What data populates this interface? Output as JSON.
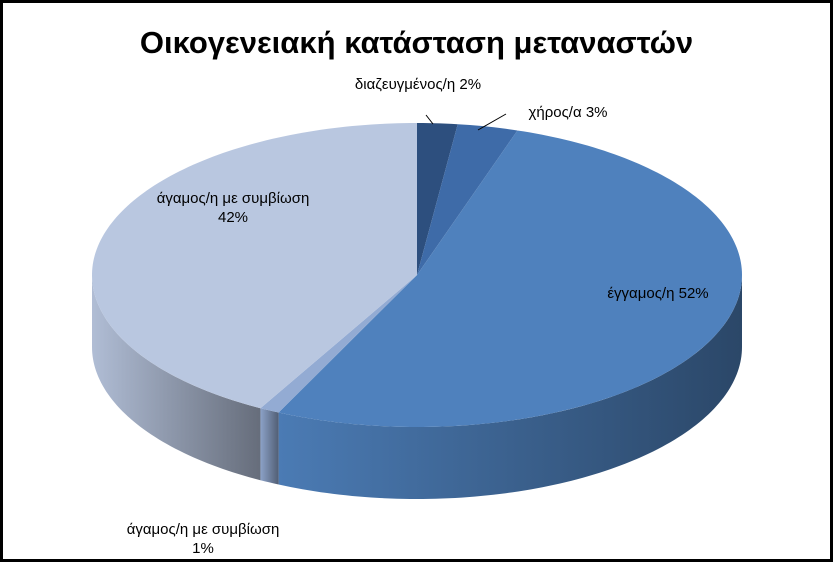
{
  "chart_data": {
    "type": "pie",
    "title": "Οικογενειακή κατάσταση μεταναστών",
    "categories": [
      "διαζευγμένος/η",
      "χήρος/α",
      "έγγαμος/η",
      "άγαμος/η με συμβίωση",
      "άγαμος/η με συμβίωση"
    ],
    "values": [
      2,
      3,
      52,
      1,
      42
    ],
    "value_labels": [
      "2%",
      "3%",
      "52%",
      "1%",
      "42%"
    ],
    "colors": [
      "#2d4f7e",
      "#3e6ba8",
      "#4f81bd",
      "#93abd3",
      "#b9c7e0"
    ]
  }
}
